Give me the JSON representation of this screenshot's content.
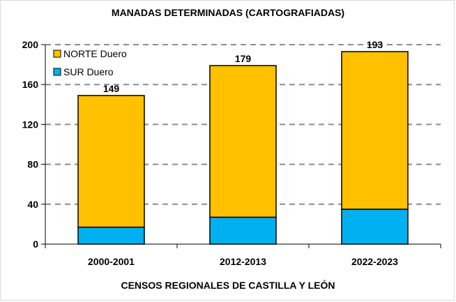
{
  "chart_data": {
    "type": "bar",
    "stacked": true,
    "title": "MANADAS DETERMINADAS (CARTOGRAFIADAS)",
    "xlabel": "CENSOS REGIONALES DE CASTILLA Y LEÓN",
    "ylabel": "",
    "ylim": [
      0,
      200
    ],
    "yticks": [
      0,
      40,
      80,
      120,
      160,
      200
    ],
    "grid": true,
    "legend_position": "top-left",
    "categories": [
      "2000-2001",
      "2012-2013",
      "2022-2023"
    ],
    "series": [
      {
        "name": "SUR Duero",
        "values": [
          17,
          27,
          35
        ],
        "color": "#00b0f0"
      },
      {
        "name": "NORTE Duero",
        "values": [
          132,
          152,
          158
        ],
        "color": "#ffc000"
      }
    ],
    "totals": [
      149,
      179,
      193
    ],
    "legend": [
      {
        "name": "NORTE Duero",
        "color": "#ffc000"
      },
      {
        "name": "SUR Duero",
        "color": "#00b0f0"
      }
    ]
  }
}
